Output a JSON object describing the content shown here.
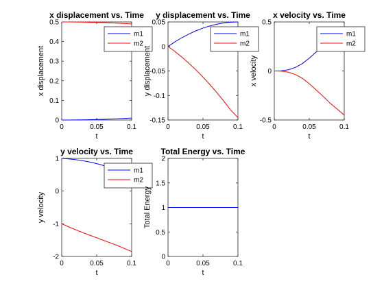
{
  "chart_data": [
    {
      "type": "line",
      "title": "x displacement vs. Time",
      "xlabel": "t",
      "ylabel": "x displacement",
      "xlim": [
        0,
        0.1
      ],
      "ylim": [
        0,
        0.5
      ],
      "xticks": [
        0,
        0.05,
        0.1
      ],
      "xtick_labels": [
        "0",
        "0.05",
        "0.1"
      ],
      "yticks": [
        0,
        0.1,
        0.2,
        0.3,
        0.4,
        0.5
      ],
      "ytick_labels": [
        "0",
        "0.1",
        "0.2",
        "0.3",
        "0.4",
        "0.5"
      ],
      "grid": false,
      "legend": "top-right",
      "series": [
        {
          "name": "m1",
          "color": "#0000ff",
          "x": [
            0,
            0.01,
            0.02,
            0.03,
            0.04,
            0.05,
            0.06,
            0.07,
            0.08,
            0.09,
            0.1
          ],
          "y": [
            0,
            0.0001,
            0.0004,
            0.0009,
            0.0016,
            0.0025,
            0.0036,
            0.0049,
            0.0064,
            0.0081,
            0.01
          ]
        },
        {
          "name": "m2",
          "color": "#ff0000",
          "x": [
            0,
            0.01,
            0.02,
            0.03,
            0.04,
            0.05,
            0.06,
            0.07,
            0.08,
            0.09,
            0.1
          ],
          "y": [
            0.5,
            0.4999,
            0.4996,
            0.4991,
            0.4984,
            0.4975,
            0.4964,
            0.4951,
            0.4936,
            0.4919,
            0.49
          ]
        }
      ]
    },
    {
      "type": "line",
      "title": "y displacement vs. Time",
      "xlabel": "t",
      "ylabel": "y displacement",
      "xlim": [
        0,
        0.1
      ],
      "ylim": [
        -0.15,
        0.05
      ],
      "xticks": [
        0,
        0.05,
        0.1
      ],
      "xtick_labels": [
        "0",
        "0.05",
        "0.1"
      ],
      "yticks": [
        -0.15,
        -0.1,
        -0.05,
        0,
        0.05
      ],
      "ytick_labels": [
        "-0.15",
        "-0.1",
        "-0.05",
        "0",
        "0.05"
      ],
      "grid": false,
      "legend": "top-right",
      "series": [
        {
          "name": "m1",
          "color": "#0000ff",
          "x": [
            0,
            0.01,
            0.02,
            0.03,
            0.04,
            0.05,
            0.06,
            0.07,
            0.08,
            0.09,
            0.1
          ],
          "y": [
            0,
            0.0095,
            0.018,
            0.0255,
            0.032,
            0.0375,
            0.042,
            0.0455,
            0.048,
            0.0495,
            0.05
          ]
        },
        {
          "name": "m2",
          "color": "#ff0000",
          "x": [
            0,
            0.01,
            0.02,
            0.03,
            0.04,
            0.05,
            0.06,
            0.07,
            0.08,
            0.09,
            0.1
          ],
          "y": [
            0,
            -0.0105,
            -0.022,
            -0.0345,
            -0.048,
            -0.0625,
            -0.078,
            -0.0945,
            -0.112,
            -0.1305,
            -0.145
          ]
        }
      ]
    },
    {
      "type": "line",
      "title": "x velocity vs. Time",
      "xlabel": "t",
      "ylabel": "x velocity",
      "xlim": [
        0,
        0.1
      ],
      "ylim": [
        -0.5,
        0.5
      ],
      "xticks": [
        0,
        0.05,
        0.1
      ],
      "xtick_labels": [
        "0",
        "0.05",
        "0.1"
      ],
      "yticks": [
        -0.5,
        0,
        0.5
      ],
      "ytick_labels": [
        "-0.5",
        "0",
        "0.5"
      ],
      "grid": false,
      "legend": "top-right",
      "series": [
        {
          "name": "m1",
          "color": "#0000ff",
          "x": [
            0,
            0.01,
            0.02,
            0.03,
            0.04,
            0.05,
            0.06,
            0.07,
            0.08,
            0.09,
            0.1
          ],
          "y": [
            0,
            0.002,
            0.012,
            0.036,
            0.075,
            0.13,
            0.195,
            0.26,
            0.33,
            0.39,
            0.45
          ]
        },
        {
          "name": "m2",
          "color": "#ff0000",
          "x": [
            0,
            0.01,
            0.02,
            0.03,
            0.04,
            0.05,
            0.06,
            0.07,
            0.08,
            0.09,
            0.1
          ],
          "y": [
            0,
            -0.002,
            -0.012,
            -0.036,
            -0.075,
            -0.13,
            -0.195,
            -0.26,
            -0.33,
            -0.39,
            -0.45
          ]
        }
      ]
    },
    {
      "type": "line",
      "title": "y velocity vs. Time",
      "xlabel": "t",
      "ylabel": "y velocity",
      "xlim": [
        0,
        0.1
      ],
      "ylim": [
        -2,
        1
      ],
      "xticks": [
        0,
        0.05,
        0.1
      ],
      "xtick_labels": [
        "0",
        "0.05",
        "0.1"
      ],
      "yticks": [
        -2,
        -1,
        0,
        1
      ],
      "ytick_labels": [
        "-2",
        "-1",
        "0",
        "1"
      ],
      "grid": false,
      "legend": "top-right",
      "series": [
        {
          "name": "m1",
          "color": "#0000ff",
          "x": [
            0,
            0.01,
            0.02,
            0.03,
            0.04,
            0.05,
            0.06,
            0.07,
            0.08,
            0.09,
            0.1
          ],
          "y": [
            1,
            0.985,
            0.96,
            0.93,
            0.89,
            0.84,
            0.78,
            0.71,
            0.62,
            0.52,
            0.4
          ]
        },
        {
          "name": "m2",
          "color": "#ff0000",
          "x": [
            0,
            0.01,
            0.02,
            0.03,
            0.04,
            0.05,
            0.06,
            0.07,
            0.08,
            0.09,
            0.1
          ],
          "y": [
            -1,
            -1.095,
            -1.185,
            -1.27,
            -1.35,
            -1.43,
            -1.51,
            -1.59,
            -1.67,
            -1.76,
            -1.85
          ]
        }
      ]
    },
    {
      "type": "line",
      "title": "Total Energy vs. Time",
      "xlabel": "t",
      "ylabel": "Total Energy",
      "xlim": [
        0,
        0.1
      ],
      "ylim": [
        0,
        2
      ],
      "xticks": [
        0,
        0.05,
        0.1
      ],
      "xtick_labels": [
        "0",
        "0.05",
        "0.1"
      ],
      "yticks": [
        0,
        0.5,
        1,
        1.5,
        2
      ],
      "ytick_labels": [
        "0",
        "0.5",
        "1",
        "1.5",
        "2"
      ],
      "grid": false,
      "series": [
        {
          "color": "#0000ff",
          "x": [
            0,
            0.05,
            0.1
          ],
          "y": [
            1,
            1,
            1
          ]
        }
      ]
    }
  ]
}
